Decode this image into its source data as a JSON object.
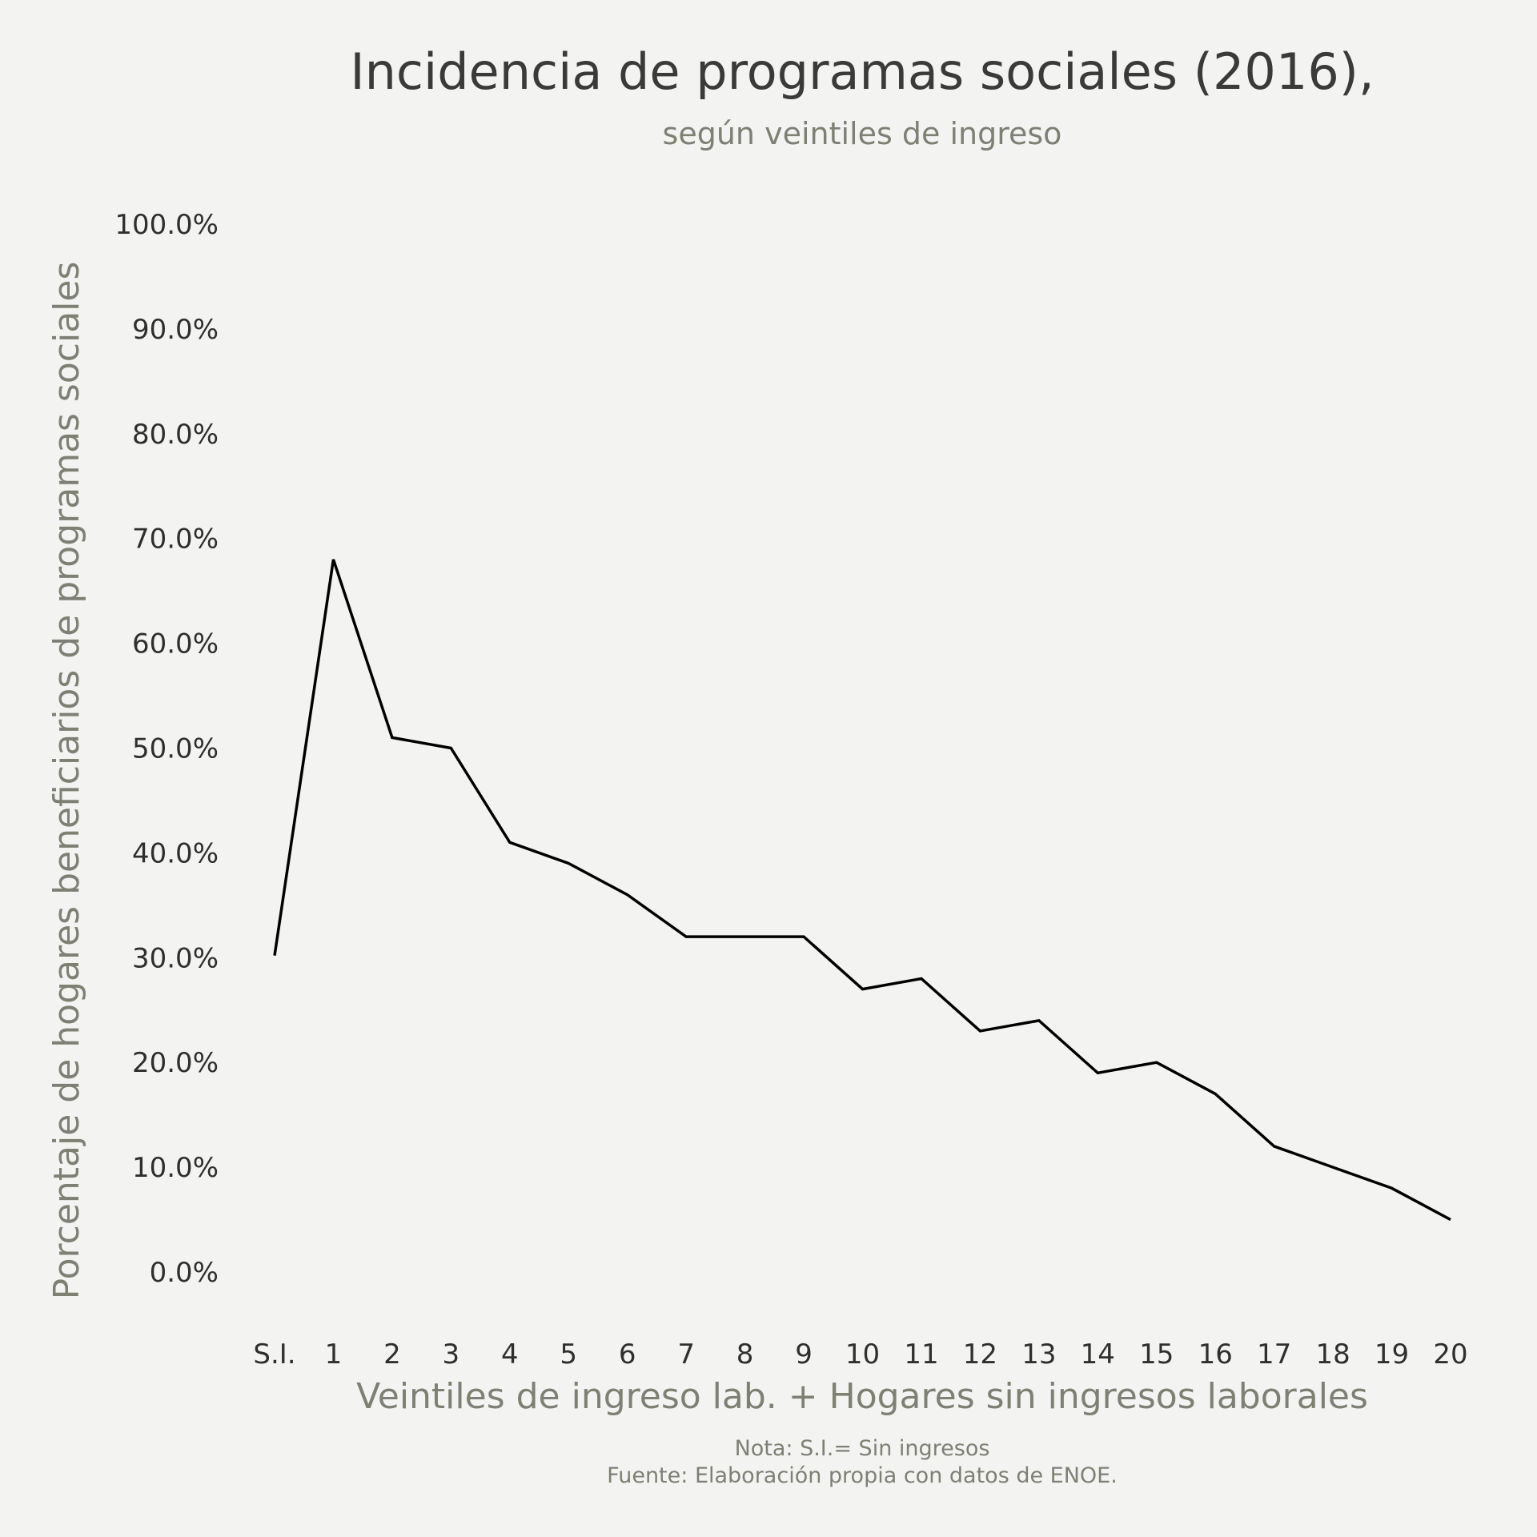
{
  "chart_data": {
    "type": "line",
    "title": "Incidencia de programas sociales (2016),",
    "subtitle": "según veintiles de ingreso",
    "xlabel": "Veintiles de ingreso lab. + Hogares sin ingresos laborales",
    "ylabel": "Porcentaje de hogares beneficiarios de programas sociales",
    "categories": [
      "S.I.",
      "1",
      "2",
      "3",
      "4",
      "5",
      "6",
      "7",
      "8",
      "9",
      "10",
      "11",
      "12",
      "13",
      "14",
      "15",
      "16",
      "17",
      "18",
      "19",
      "20"
    ],
    "series": [
      {
        "values": [
          30.2,
          68.0,
          51.0,
          50.0,
          41.0,
          39.0,
          36.0,
          32.0,
          32.0,
          32.0,
          27.0,
          28.0,
          23.0,
          24.0,
          19.0,
          20.0,
          17.0,
          12.0,
          10.0,
          8.0,
          5.0
        ],
        "color": "#000000"
      }
    ],
    "yticks": [
      0,
      10,
      20,
      30,
      40,
      50,
      60,
      70,
      80,
      90,
      100
    ],
    "ytick_labels": [
      "0.0%",
      "10.0%",
      "20.0%",
      "30.0%",
      "40.0%",
      "50.0%",
      "60.0%",
      "70.0%",
      "80.0%",
      "90.0%",
      "100.0%"
    ],
    "ylim": [
      0,
      100
    ],
    "grid": false,
    "legend": "none",
    "note_lines": [
      "Nota: S.I.= Sin ingresos",
      "Fuente: Elaboración propia con datos de ENOE."
    ],
    "colors": {
      "background": "#f3f3f1",
      "line": "#000000",
      "title": "#3a3a3a",
      "muted": "#7f8074",
      "ticks": "#2f2f2f"
    }
  }
}
